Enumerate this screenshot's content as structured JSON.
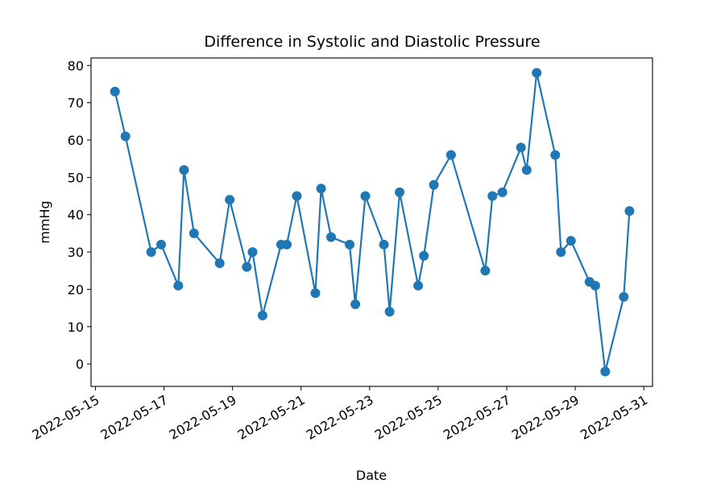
{
  "chart_data": {
    "type": "line",
    "title": "Difference in Systolic and Diastolic Pressure",
    "xlabel": "Date",
    "ylabel": "mmHg",
    "x_axis_type": "date",
    "xlim": [
      "2022-05-14T20:53",
      "2022-05-31T06:07"
    ],
    "ylim": [
      -6,
      82
    ],
    "x_ticks": [
      "2022-05-15",
      "2022-05-17",
      "2022-05-19",
      "2022-05-21",
      "2022-05-23",
      "2022-05-25",
      "2022-05-27",
      "2022-05-29",
      "2022-05-31"
    ],
    "y_ticks": [
      0,
      10,
      20,
      30,
      40,
      50,
      60,
      70,
      80
    ],
    "grid": false,
    "legend": "none",
    "marker": "circle",
    "series_color": "#1f77b4",
    "series": [
      {
        "name": "",
        "x": [
          "2022-05-15T13:40",
          "2022-05-15T21:00",
          "2022-05-16T15:00",
          "2022-05-16T22:00",
          "2022-05-17T10:00",
          "2022-05-17T14:00",
          "2022-05-17T21:00",
          "2022-05-18T15:00",
          "2022-05-18T22:00",
          "2022-05-19T10:00",
          "2022-05-19T14:00",
          "2022-05-19T21:00",
          "2022-05-20T10:00",
          "2022-05-20T14:00",
          "2022-05-20T21:00",
          "2022-05-21T10:00",
          "2022-05-21T14:00",
          "2022-05-21T21:00",
          "2022-05-22T10:00",
          "2022-05-22T14:00",
          "2022-05-22T21:00",
          "2022-05-23T10:00",
          "2022-05-23T14:00",
          "2022-05-23T21:00",
          "2022-05-24T10:00",
          "2022-05-24T14:00",
          "2022-05-24T21:00",
          "2022-05-25T09:00",
          "2022-05-26T09:00",
          "2022-05-26T14:00",
          "2022-05-26T21:00",
          "2022-05-27T10:00",
          "2022-05-27T14:00",
          "2022-05-27T21:00",
          "2022-05-28T10:00",
          "2022-05-28T14:00",
          "2022-05-28T21:00",
          "2022-05-29T10:00",
          "2022-05-29T14:00",
          "2022-05-29T21:00",
          "2022-05-30T10:00",
          "2022-05-30T14:00"
        ],
        "y": [
          73,
          61,
          30,
          32,
          21,
          52,
          35,
          27,
          44,
          26,
          30,
          13,
          32,
          32,
          45,
          19,
          47,
          34,
          32,
          16,
          45,
          32,
          14,
          46,
          21,
          29,
          48,
          56,
          25,
          45,
          46,
          58,
          52,
          78,
          56,
          30,
          33,
          22,
          21,
          -2,
          18,
          41
        ]
      }
    ]
  }
}
